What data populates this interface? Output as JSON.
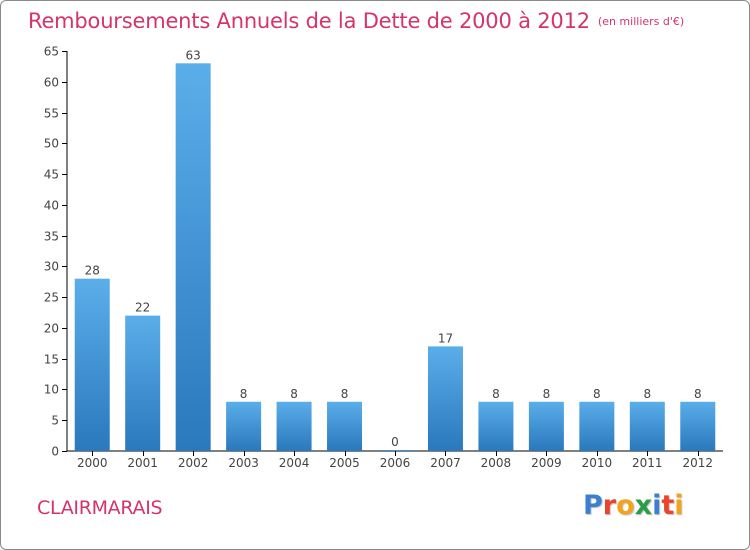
{
  "header": {
    "title": "Remboursements Annuels de la Dette de 2000 à 2012",
    "unit": "(en milliers d'€)"
  },
  "footer": {
    "commune": "CLAIRMARAIS",
    "brand_letters": [
      {
        "char": "P",
        "color": "#3b7fd0"
      },
      {
        "char": "r",
        "color": "#e8452c"
      },
      {
        "char": "o",
        "color": "#f2a31b"
      },
      {
        "char": "x",
        "color": "#2a9d46"
      },
      {
        "char": "i",
        "color": "#3b7fd0"
      },
      {
        "char": "t",
        "color": "#e8452c"
      },
      {
        "char": "i",
        "color": "#f2a31b"
      }
    ]
  },
  "colors": {
    "title": "#d6336c",
    "bar_top": "#5aaee9",
    "bar_bottom": "#2b78bd",
    "axis": "#000000",
    "text": "#444444"
  },
  "chart_data": {
    "type": "bar",
    "title": "Remboursements Annuels de la Dette de 2000 à 2012",
    "categories": [
      "2000",
      "2001",
      "2002",
      "2003",
      "2004",
      "2005",
      "2006",
      "2007",
      "2008",
      "2009",
      "2010",
      "2011",
      "2012"
    ],
    "values": [
      28,
      22,
      63,
      8,
      8,
      8,
      0,
      17,
      8,
      8,
      8,
      8,
      8
    ],
    "ylim": [
      0,
      65
    ],
    "yticks": [
      0,
      5,
      10,
      15,
      20,
      25,
      30,
      35,
      40,
      45,
      50,
      55,
      60,
      65
    ],
    "grid": false,
    "legend": "none"
  }
}
